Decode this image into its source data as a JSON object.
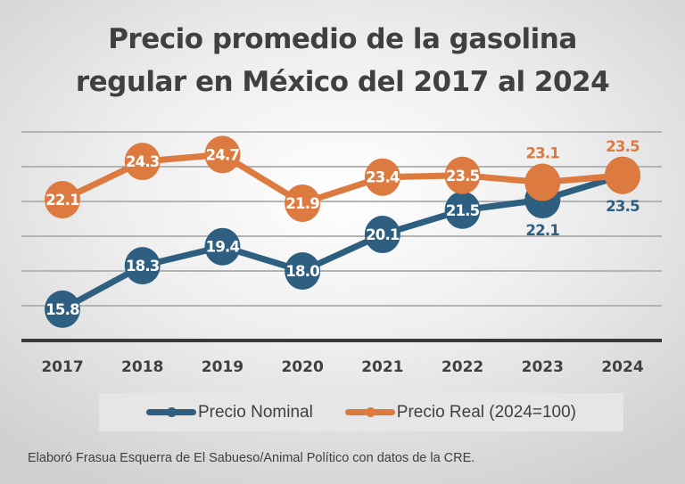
{
  "title_lines": [
    "Precio promedio de la gasolina",
    "regular en México del 2017 al 2024"
  ],
  "footer": "Elaboró Frasua Esquerra de El Sabueso/Animal Político con datos de la CRE.",
  "chart_data": {
    "type": "line",
    "title": "Precio promedio de la gasolina regular en México del 2017 al 2024",
    "categories": [
      "2017",
      "2018",
      "2019",
      "2020",
      "2021",
      "2022",
      "2023",
      "2024"
    ],
    "series": [
      {
        "name": "Precio Nominal",
        "color": "#2e5f80",
        "values": [
          15.8,
          18.3,
          19.4,
          18.0,
          20.1,
          21.5,
          22.1,
          23.5
        ]
      },
      {
        "name": "Precio Real (2024=100)",
        "color": "#dd7a40",
        "values": [
          22.1,
          24.3,
          24.7,
          21.9,
          23.4,
          23.5,
          23.1,
          23.5
        ]
      }
    ],
    "ylim": [
      14,
      26
    ],
    "gridlines": [
      16,
      18,
      20,
      22,
      24,
      26
    ],
    "y_tick_labels_shown": false,
    "grid": true,
    "data_labels": true,
    "legend": "bottom"
  }
}
